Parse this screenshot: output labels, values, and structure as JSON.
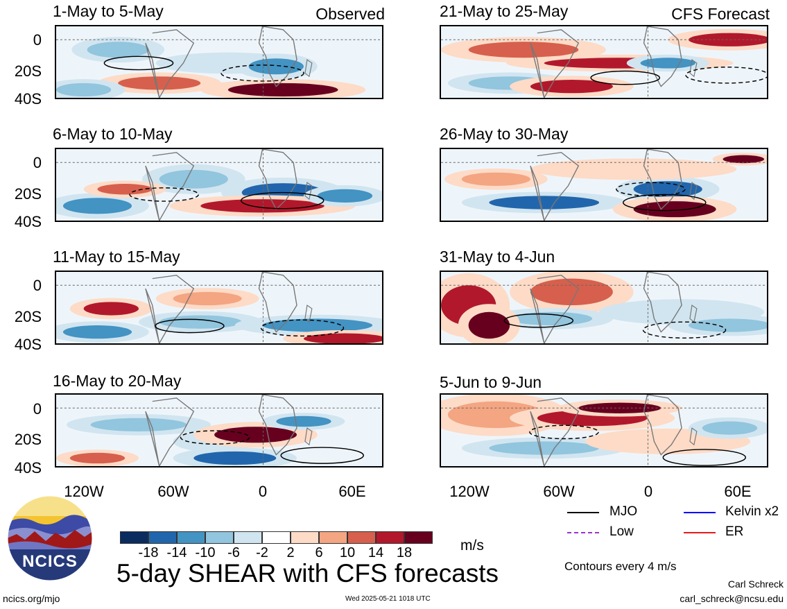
{
  "left_column": {
    "tag": "Observed",
    "panels": [
      {
        "title": "1-May to 5-May"
      },
      {
        "title": "6-May to 10-May"
      },
      {
        "title": "11-May to 15-May"
      },
      {
        "title": "16-May to 20-May"
      }
    ]
  },
  "right_column": {
    "tag": "CFS Forecast",
    "panels": [
      {
        "title": "21-May to 25-May"
      },
      {
        "title": "26-May to 30-May"
      },
      {
        "title": "31-May to 4-Jun"
      },
      {
        "title": "5-Jun to 9-Jun"
      }
    ]
  },
  "axes": {
    "y_ticks": [
      "0",
      "20S",
      "40S"
    ],
    "x_ticks": [
      "120W",
      "60W",
      "0",
      "60E"
    ]
  },
  "colorbar": {
    "ticks": [
      "-18",
      "-14",
      "-10",
      "-6",
      "-2",
      "2",
      "6",
      "10",
      "14",
      "18"
    ],
    "unit": "m/s",
    "colors": [
      "#0a2c5f",
      "#2166ac",
      "#4393c3",
      "#92c5de",
      "#d1e5f0",
      "#ffffff",
      "#fddbc7",
      "#f4a582",
      "#d6604d",
      "#b2182b",
      "#67001f"
    ]
  },
  "legend": {
    "items": [
      {
        "label": "MJO",
        "color": "#000000"
      },
      {
        "label": "Kelvin x2",
        "color": "#0000ff"
      },
      {
        "label": "Low",
        "color": "#9932cc"
      },
      {
        "label": "ER",
        "color": "#e31a1c"
      }
    ],
    "note": "Contours every 4 m/s"
  },
  "title": "5-day SHEAR with CFS forecasts",
  "logo_text": "NCICS",
  "footer": {
    "url": "ncics.org/mjo",
    "timestamp": "Wed 2025-05-21 1018 UTC",
    "author": "Carl Schreck",
    "email": "carl_schreck@ncsu.edu"
  }
}
